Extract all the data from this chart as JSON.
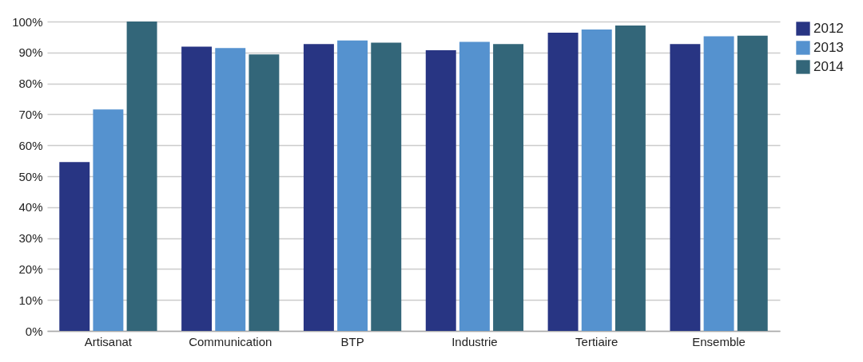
{
  "chart_data": {
    "type": "bar",
    "categories": [
      "Artisanat",
      "Communication",
      "BTP",
      "Industrie",
      "Tertiaire",
      "Ensemble"
    ],
    "series": [
      {
        "name": "2012",
        "color": "#283583",
        "values": [
          54.6,
          91.9,
          92.7,
          90.7,
          96.4,
          92.7
        ]
      },
      {
        "name": "2013",
        "color": "#5592cf",
        "values": [
          71.6,
          91.4,
          93.9,
          93.4,
          97.4,
          95.2
        ]
      },
      {
        "name": "2014",
        "color": "#336679",
        "values": [
          100,
          89.4,
          93.2,
          92.7,
          98.7,
          95.4
        ]
      }
    ],
    "ylim": [
      0,
      100
    ],
    "yticks": [
      {
        "value": 0,
        "label": "0%"
      },
      {
        "value": 10,
        "label": "10%"
      },
      {
        "value": 20,
        "label": "20%"
      },
      {
        "value": 30,
        "label": "30%"
      },
      {
        "value": 40,
        "label": "40%"
      },
      {
        "value": 50,
        "label": "50%"
      },
      {
        "value": 60,
        "label": "60%"
      },
      {
        "value": 70,
        "label": "70%"
      },
      {
        "value": 80,
        "label": "80%"
      },
      {
        "value": 90,
        "label": "90%"
      },
      {
        "value": 100,
        "label": "100%"
      }
    ],
    "grid": "y",
    "legend": "right"
  }
}
